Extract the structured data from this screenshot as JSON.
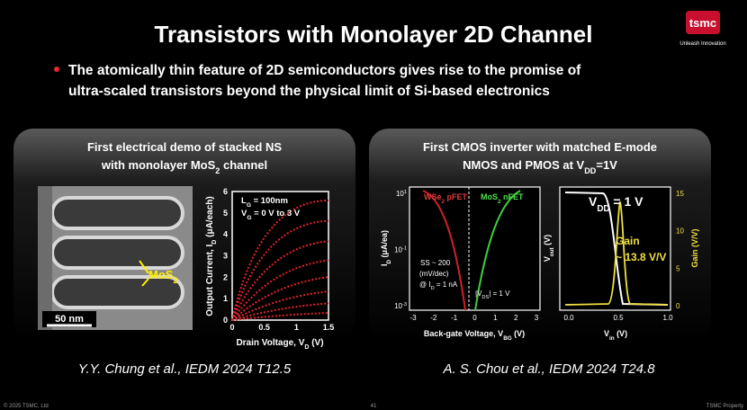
{
  "header": {
    "title": "Transistors with Monolayer 2D Channel",
    "logo": "tsmc",
    "tagline": "Unleash Innovation"
  },
  "bullet": [
    "The atomically thin feature of 2D semiconductors gives rise to the promise of",
    "ultra-scaled transistors beyond the physical limit of Si-based electronics"
  ],
  "left_panel": {
    "heading_line1": "First electrical demo of stacked NS",
    "heading_line2": [
      "with monolayer MoS",
      "2",
      " channel"
    ],
    "image_label": [
      "MoS",
      "2"
    ],
    "scale_bar": "50 nm",
    "plot": {
      "y_label": [
        "Output Current, I",
        "D",
        " (μA/each)"
      ],
      "x_label": [
        "Drain Voltage, V",
        "D",
        " (V)"
      ],
      "xticks": [
        0,
        0.5,
        1,
        1.5
      ],
      "yticks": [
        0,
        1,
        2,
        3,
        4,
        5,
        6
      ],
      "legend": [
        [
          "L",
          "G",
          " = 100nm"
        ],
        [
          "V",
          "G",
          " = 0 V to 3 V"
        ]
      ]
    },
    "citation": "Y.Y. Chung et al., IEDM 2024 T12.5"
  },
  "right_panel": {
    "heading_line1": "First CMOS inverter with matched E-mode",
    "heading_line2": [
      "NMOS and PMOS at V",
      "DD",
      "=1V"
    ],
    "plot1": {
      "y_label": [
        "I",
        "D",
        " (μA/ea)"
      ],
      "x_label": [
        "Back-gate Voltage, V",
        "BG",
        " (V)"
      ],
      "yticks": [
        {
          "base": "10",
          "exp": "1"
        },
        {
          "base": "10",
          "exp": "-1"
        },
        {
          "base": "10",
          "exp": "-3"
        }
      ],
      "xticks": [
        -3,
        -2,
        -1,
        0,
        1,
        2,
        3
      ],
      "pfet": [
        "WSe",
        "2",
        " pFET"
      ],
      "nfet": [
        "MoS",
        "2",
        " nFET"
      ],
      "ss": [
        "SS ~ 200",
        "(mV/dec)"
      ],
      "ss_at": [
        "@ I",
        "D",
        " = 1 nA"
      ],
      "vds": [
        "|V",
        "DS",
        "| = 1 V"
      ]
    },
    "plot2": {
      "vdd": [
        "V",
        "DD",
        " = 1 V"
      ],
      "gain": "Gain",
      "gain_value": "~ 13.8 V/V",
      "x_label": [
        "V",
        "in",
        " (V)"
      ],
      "y_label": [
        "V",
        "out",
        " (V)"
      ],
      "y2_label": "Gain (V/V)",
      "xticks": [
        "0.0",
        "0.5",
        "1.0"
      ],
      "y2ticks": [
        15,
        10,
        5,
        0
      ]
    },
    "citation": "A. S. Chou et al., IEDM 2024 T24.8"
  },
  "footer": {
    "left": "© 2025 TSMC, Ltd",
    "center": "41",
    "right": "TSMC Property"
  }
}
